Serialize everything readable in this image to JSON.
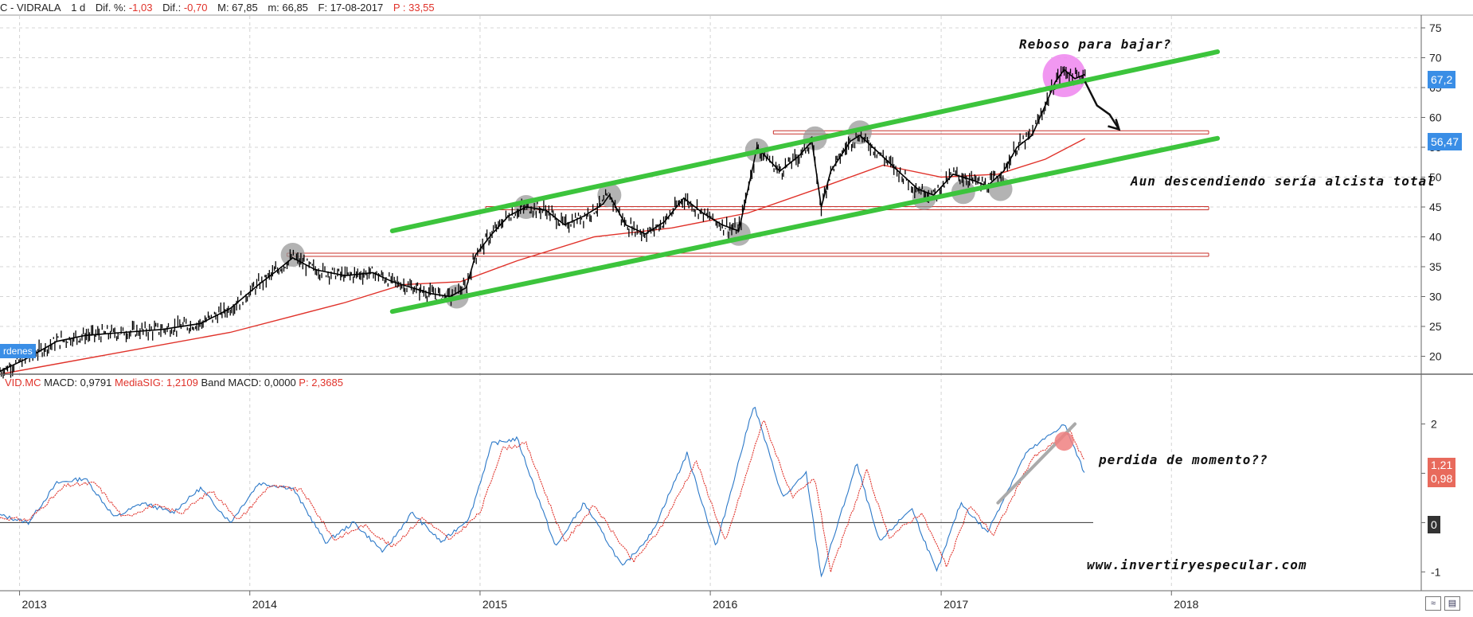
{
  "header": {
    "symbol": "C - VIDRALA",
    "period": "1 d",
    "dif_pct_label": "Dif. %:",
    "dif_pct_value": "-1,03",
    "dif_label": "Dif.:",
    "dif_value": "-0,70",
    "max_label": "M: 67,85",
    "min_label": "m: 66,85",
    "date_label": "F: 17-08-2017",
    "p_label": "P : 33,55"
  },
  "macd_header": {
    "symbol": "VID.MC",
    "macd_label": "MACD: 0,9791",
    "sig_label": "MediaSIG: 1,2109",
    "band_label": "Band  MACD: 0,0000",
    "p_label": "P: 2,3685"
  },
  "side_tab": "rdenes",
  "price_tags": [
    "67,2",
    "56,47"
  ],
  "macd_tags": [
    "1,21",
    "0,98",
    "0"
  ],
  "annotations": {
    "top": "Reboso para bajar?",
    "middle": "Aun descendiendo sería alcista total",
    "macd": "perdida de momento??",
    "website": "www.invertiryespecular.com"
  },
  "colors": {
    "price": "#000000",
    "ma": "#e0322a",
    "channel": "#3cc43c",
    "macd": "#2b78c8",
    "signal": "#e0322a",
    "tag_blue": "#3a8ee6",
    "tag_red": "#e86a5c",
    "tag_dark": "#333333",
    "circle": "#9a9a9a",
    "circle_pink": "#f08cf0"
  },
  "chart_data": [
    {
      "type": "line",
      "description_axis": "price",
      "x_ticks": [
        "2013",
        "2014",
        "2015",
        "2016",
        "2017",
        "2018"
      ],
      "y_ticks": [
        20,
        25,
        30,
        35,
        40,
        45,
        50,
        55,
        60,
        65,
        70,
        75
      ],
      "ylim": [
        17,
        77
      ],
      "xlim": [
        "2012-12-01",
        "2019-02-01"
      ],
      "grid": true,
      "series": [
        {
          "kind": "price",
          "points": [
            [
              "2012-12-01",
              17.5
            ],
            [
              "2013-01-10",
              19.5
            ],
            [
              "2013-03-01",
              22.5
            ],
            [
              "2013-04-15",
              23.5
            ],
            [
              "2013-06-15",
              24.0
            ],
            [
              "2013-08-15",
              24.5
            ],
            [
              "2013-10-15",
              25.5
            ],
            [
              "2013-12-01",
              28.0
            ],
            [
              "2014-01-15",
              32.0
            ],
            [
              "2014-02-15",
              34.5
            ],
            [
              "2014-03-10",
              36.5
            ],
            [
              "2014-04-15",
              34.5
            ],
            [
              "2014-06-01",
              33.5
            ],
            [
              "2014-07-15",
              34.0
            ],
            [
              "2014-08-15",
              32.5
            ],
            [
              "2014-09-15",
              31.5
            ],
            [
              "2014-10-15",
              30.5
            ],
            [
              "2014-11-15",
              30.0
            ],
            [
              "2014-12-10",
              31.5
            ],
            [
              "2014-12-25",
              37.0
            ],
            [
              "2015-01-20",
              40.5
            ],
            [
              "2015-02-15",
              43.5
            ],
            [
              "2015-03-15",
              45.0
            ],
            [
              "2015-04-15",
              44.5
            ],
            [
              "2015-05-15",
              42.0
            ],
            [
              "2015-06-15",
              43.5
            ],
            [
              "2015-07-15",
              45.5
            ],
            [
              "2015-07-25",
              47.0
            ],
            [
              "2015-08-20",
              42.0
            ],
            [
              "2015-09-20",
              40.5
            ],
            [
              "2015-10-20",
              42.5
            ],
            [
              "2015-11-20",
              46.5
            ],
            [
              "2015-12-20",
              44.0
            ],
            [
              "2016-01-20",
              42.0
            ],
            [
              "2016-02-15",
              41.0
            ],
            [
              "2016-03-05",
              50.0
            ],
            [
              "2016-03-15",
              55.0
            ],
            [
              "2016-04-20",
              51.0
            ],
            [
              "2016-05-20",
              53.5
            ],
            [
              "2016-06-10",
              56.0
            ],
            [
              "2016-06-25",
              45.0
            ],
            [
              "2016-07-10",
              51.0
            ],
            [
              "2016-08-10",
              56.0
            ],
            [
              "2016-08-25",
              57.0
            ],
            [
              "2016-09-25",
              54.0
            ],
            [
              "2016-10-25",
              51.0
            ],
            [
              "2016-11-25",
              48.0
            ],
            [
              "2016-12-20",
              47.0
            ],
            [
              "2017-01-20",
              50.5
            ],
            [
              "2017-02-20",
              49.5
            ],
            [
              "2017-03-15",
              48.5
            ],
            [
              "2017-04-10",
              51.0
            ],
            [
              "2017-05-01",
              55.0
            ],
            [
              "2017-05-25",
              57.0
            ],
            [
              "2017-06-15",
              62.0
            ],
            [
              "2017-07-01",
              66.0
            ],
            [
              "2017-07-15",
              68.0
            ],
            [
              "2017-08-01",
              66.5
            ],
            [
              "2017-08-17",
              67.2
            ]
          ]
        },
        {
          "kind": "moving_average",
          "points": [
            [
              "2012-12-01",
              17.0
            ],
            [
              "2013-06-01",
              20.5
            ],
            [
              "2013-12-01",
              24.0
            ],
            [
              "2014-06-01",
              29.0
            ],
            [
              "2014-09-01",
              32.0
            ],
            [
              "2014-12-01",
              32.5
            ],
            [
              "2015-03-01",
              36.0
            ],
            [
              "2015-07-01",
              40.0
            ],
            [
              "2015-11-01",
              41.5
            ],
            [
              "2016-03-01",
              44.0
            ],
            [
              "2016-07-01",
              48.5
            ],
            [
              "2016-10-01",
              52.0
            ],
            [
              "2017-01-01",
              50.0
            ],
            [
              "2017-04-01",
              50.5
            ],
            [
              "2017-06-15",
              53.0
            ],
            [
              "2017-08-17",
              56.47
            ]
          ]
        }
      ],
      "trendlines": [
        {
          "kind": "channel",
          "from": [
            "2014-08-15",
            41.0
          ],
          "to": [
            "2018-03-15",
            71.0
          ]
        },
        {
          "kind": "channel",
          "from": [
            "2014-08-15",
            27.5
          ],
          "to": [
            "2018-03-15",
            56.5
          ]
        },
        {
          "kind": "support",
          "from": [
            "2014-03-01",
            37.0
          ],
          "to": [
            "2018-03-01",
            37.0
          ]
        },
        {
          "kind": "support",
          "from": [
            "2015-01-10",
            44.8
          ],
          "to": [
            "2018-03-01",
            44.8
          ]
        },
        {
          "kind": "support",
          "from": [
            "2016-04-10",
            57.5
          ],
          "to": [
            "2018-03-01",
            57.5
          ]
        }
      ],
      "markers": [
        [
          "2014-03-10",
          37.0
        ],
        [
          "2014-11-25",
          30.0
        ],
        [
          "2015-03-15",
          45.0
        ],
        [
          "2015-07-25",
          47.0
        ],
        [
          "2016-02-15",
          40.5
        ],
        [
          "2016-03-15",
          54.5
        ],
        [
          "2016-06-15",
          56.5
        ],
        [
          "2016-08-25",
          57.5
        ],
        [
          "2016-12-05",
          46.5
        ],
        [
          "2017-02-05",
          47.5
        ],
        [
          "2017-04-05",
          48.0
        ]
      ],
      "highlight": [
        "2017-07-15",
        67.0
      ],
      "projection": [
        [
          "2017-08-17",
          66.0
        ],
        [
          "2017-09-05",
          62.0
        ],
        [
          "2017-09-25",
          60.5
        ],
        [
          "2017-10-10",
          58.0
        ]
      ]
    },
    {
      "type": "line",
      "description_axis": "macd",
      "y_ticks": [
        -1,
        0,
        1,
        2
      ],
      "ylim": [
        -1.35,
        2.8
      ],
      "grid": false,
      "series": [
        {
          "name": "MACD",
          "points": [
            [
              "2012-12-01",
              0.15
            ],
            [
              "2013-01-15",
              0.0
            ],
            [
              "2013-03-01",
              0.8
            ],
            [
              "2013-04-15",
              0.9
            ],
            [
              "2013-06-01",
              0.1
            ],
            [
              "2013-07-15",
              0.4
            ],
            [
              "2013-09-01",
              0.2
            ],
            [
              "2013-10-15",
              0.7
            ],
            [
              "2013-12-01",
              0.0
            ],
            [
              "2014-01-15",
              0.8
            ],
            [
              "2014-03-10",
              0.7
            ],
            [
              "2014-05-01",
              -0.4
            ],
            [
              "2014-06-15",
              0.0
            ],
            [
              "2014-08-01",
              -0.6
            ],
            [
              "2014-09-15",
              0.2
            ],
            [
              "2014-11-01",
              -0.4
            ],
            [
              "2014-12-15",
              0.1
            ],
            [
              "2015-01-20",
              1.6
            ],
            [
              "2015-03-01",
              1.7
            ],
            [
              "2015-05-01",
              -0.5
            ],
            [
              "2015-06-15",
              0.4
            ],
            [
              "2015-08-15",
              -0.9
            ],
            [
              "2015-10-01",
              -0.2
            ],
            [
              "2015-11-25",
              1.4
            ],
            [
              "2016-01-10",
              -0.5
            ],
            [
              "2016-03-10",
              2.4
            ],
            [
              "2016-04-25",
              0.5
            ],
            [
              "2016-06-01",
              1.0
            ],
            [
              "2016-06-25",
              -1.1
            ],
            [
              "2016-08-20",
              1.2
            ],
            [
              "2016-09-25",
              -0.4
            ],
            [
              "2016-11-15",
              0.3
            ],
            [
              "2016-12-25",
              -1.0
            ],
            [
              "2017-02-01",
              0.4
            ],
            [
              "2017-03-15",
              -0.2
            ],
            [
              "2017-05-15",
              1.4
            ],
            [
              "2017-07-15",
              2.0
            ],
            [
              "2017-08-17",
              0.98
            ]
          ]
        },
        {
          "name": "MediaSIG",
          "points": [
            [
              "2012-12-01",
              0.1
            ],
            [
              "2013-01-15",
              0.05
            ],
            [
              "2013-03-15",
              0.75
            ],
            [
              "2013-05-01",
              0.8
            ],
            [
              "2013-06-15",
              0.1
            ],
            [
              "2013-08-01",
              0.35
            ],
            [
              "2013-09-15",
              0.2
            ],
            [
              "2013-11-01",
              0.65
            ],
            [
              "2013-12-15",
              0.05
            ],
            [
              "2014-02-01",
              0.75
            ],
            [
              "2014-03-25",
              0.65
            ],
            [
              "2014-05-15",
              -0.35
            ],
            [
              "2014-07-01",
              -0.05
            ],
            [
              "2014-08-15",
              -0.5
            ],
            [
              "2014-10-01",
              0.1
            ],
            [
              "2014-11-15",
              -0.35
            ],
            [
              "2015-01-01",
              0.2
            ],
            [
              "2015-02-05",
              1.5
            ],
            [
              "2015-03-15",
              1.6
            ],
            [
              "2015-05-15",
              -0.4
            ],
            [
              "2015-07-01",
              0.35
            ],
            [
              "2015-09-01",
              -0.8
            ],
            [
              "2015-10-15",
              -0.1
            ],
            [
              "2015-12-10",
              1.25
            ],
            [
              "2016-01-25",
              -0.4
            ],
            [
              "2016-03-25",
              2.1
            ],
            [
              "2016-05-10",
              0.5
            ],
            [
              "2016-06-15",
              0.9
            ],
            [
              "2016-07-10",
              -1.0
            ],
            [
              "2016-09-05",
              1.05
            ],
            [
              "2016-10-10",
              -0.3
            ],
            [
              "2016-12-01",
              0.2
            ],
            [
              "2017-01-10",
              -0.9
            ],
            [
              "2017-02-15",
              0.35
            ],
            [
              "2017-03-25",
              -0.25
            ],
            [
              "2017-05-25",
              1.3
            ],
            [
              "2017-07-25",
              1.85
            ],
            [
              "2017-08-17",
              1.21
            ]
          ]
        }
      ],
      "trendline": {
        "from": [
          "2017-04-01",
          0.4
        ],
        "to": [
          "2017-08-01",
          2.0
        ]
      },
      "highlight": [
        "2017-07-15",
        1.65
      ]
    }
  ]
}
